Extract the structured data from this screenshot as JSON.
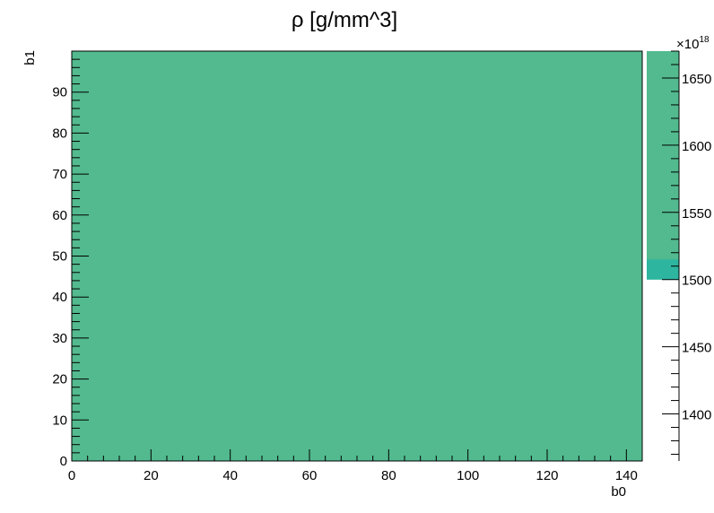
{
  "chart_data": {
    "type": "heatmap",
    "title": "ρ [g/mm^3]",
    "xlabel": "b0",
    "ylabel": "b1",
    "xlim": [
      0,
      144
    ],
    "ylim": [
      0,
      100
    ],
    "x_ticks": [
      0,
      20,
      40,
      60,
      80,
      100,
      120,
      140
    ],
    "y_ticks": [
      0,
      10,
      20,
      30,
      40,
      50,
      60,
      70,
      80,
      90
    ],
    "cells": [
      {
        "x": [
          0,
          144
        ],
        "y": [
          0,
          100
        ],
        "value": 1600,
        "color": "#52BA8E"
      }
    ],
    "colorbar": {
      "multiplier_label": "×10",
      "exponent_label": "18",
      "range": [
        1365,
        1670
      ],
      "ticks": [
        1400,
        1450,
        1500,
        1550,
        1600,
        1650
      ],
      "tick_labels": [
        "1400",
        "1450",
        "1500",
        "1550",
        "1600",
        "1650"
      ],
      "bands": [
        {
          "from": 1500,
          "to": 1670,
          "color": "#52BA8E"
        },
        {
          "from": 1500,
          "to": 1515,
          "color": "#2DB5A0"
        }
      ]
    }
  }
}
